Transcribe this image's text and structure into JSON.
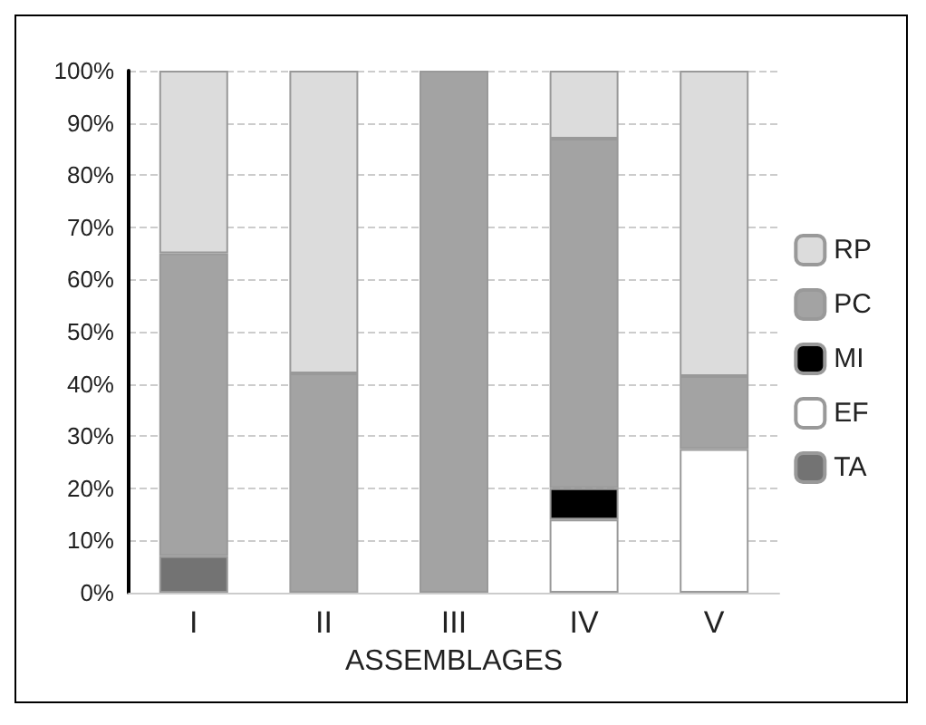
{
  "chart_data": {
    "type": "bar",
    "stacked": true,
    "xlabel": "ASSEMBLAGES",
    "categories": [
      "I",
      "II",
      "III",
      "IV",
      "V"
    ],
    "series": [
      {
        "name": "TA",
        "color": "#737373",
        "values": [
          7,
          null,
          null,
          null,
          null
        ]
      },
      {
        "name": "EF",
        "color": "#ffffff",
        "values": [
          null,
          null,
          null,
          14,
          27.5
        ]
      },
      {
        "name": "MI",
        "color": "#000000",
        "values": [
          null,
          null,
          null,
          6,
          null
        ]
      },
      {
        "name": "PC",
        "color": "#a3a3a3",
        "values": [
          58,
          42,
          100,
          67,
          14
        ]
      },
      {
        "name": "RP",
        "color": "#dcdcdc",
        "values": [
          35,
          58,
          null,
          13,
          58.5
        ]
      }
    ],
    "ylim": [
      0,
      100
    ],
    "yticks": [
      {
        "value": 0,
        "label": "0%"
      },
      {
        "value": 10,
        "label": "10%"
      },
      {
        "value": 20,
        "label": "20%"
      },
      {
        "value": 30,
        "label": "30%"
      },
      {
        "value": 40,
        "label": "40%"
      },
      {
        "value": 50,
        "label": "50%"
      },
      {
        "value": 60,
        "label": "60%"
      },
      {
        "value": 70,
        "label": "70%"
      },
      {
        "value": 80,
        "label": "80%"
      },
      {
        "value": 90,
        "label": "90%"
      },
      {
        "value": 100,
        "label": "100%"
      }
    ],
    "grid": "y",
    "legend": "right"
  }
}
